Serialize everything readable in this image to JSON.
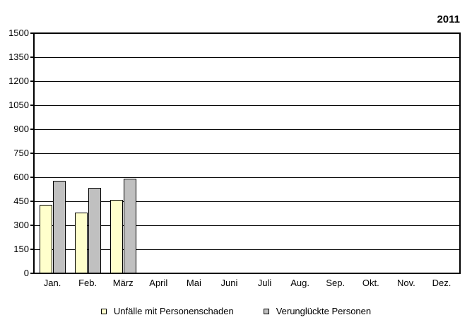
{
  "year_label": "2011",
  "colors": {
    "series_accidents_fill": "#FFFFCC",
    "series_persons_fill": "#C0C0C0",
    "axis_line": "#000000",
    "background": "#FFFFFF"
  },
  "chart_data": {
    "type": "bar",
    "title": "2011",
    "xlabel": "",
    "ylabel": "",
    "categories": [
      "Jan.",
      "Feb.",
      "März",
      "April",
      "Mai",
      "Juni",
      "Juli",
      "Aug.",
      "Sep.",
      "Okt.",
      "Nov.",
      "Dez."
    ],
    "series": [
      {
        "name": "Unfälle mit Personenschaden",
        "color": "#FFFFCC",
        "values": [
          430,
          380,
          460,
          null,
          null,
          null,
          null,
          null,
          null,
          null,
          null,
          null
        ]
      },
      {
        "name": "Verunglückte Personen",
        "color": "#C0C0C0",
        "values": [
          580,
          535,
          590,
          null,
          null,
          null,
          null,
          null,
          null,
          null,
          null,
          null
        ]
      }
    ],
    "ylim": [
      0,
      1500
    ],
    "ytick_step": 150,
    "yticks": [
      0,
      150,
      300,
      450,
      600,
      750,
      900,
      1050,
      1200,
      1350,
      1500
    ],
    "grid": "horizontal",
    "legend_position": "bottom"
  }
}
